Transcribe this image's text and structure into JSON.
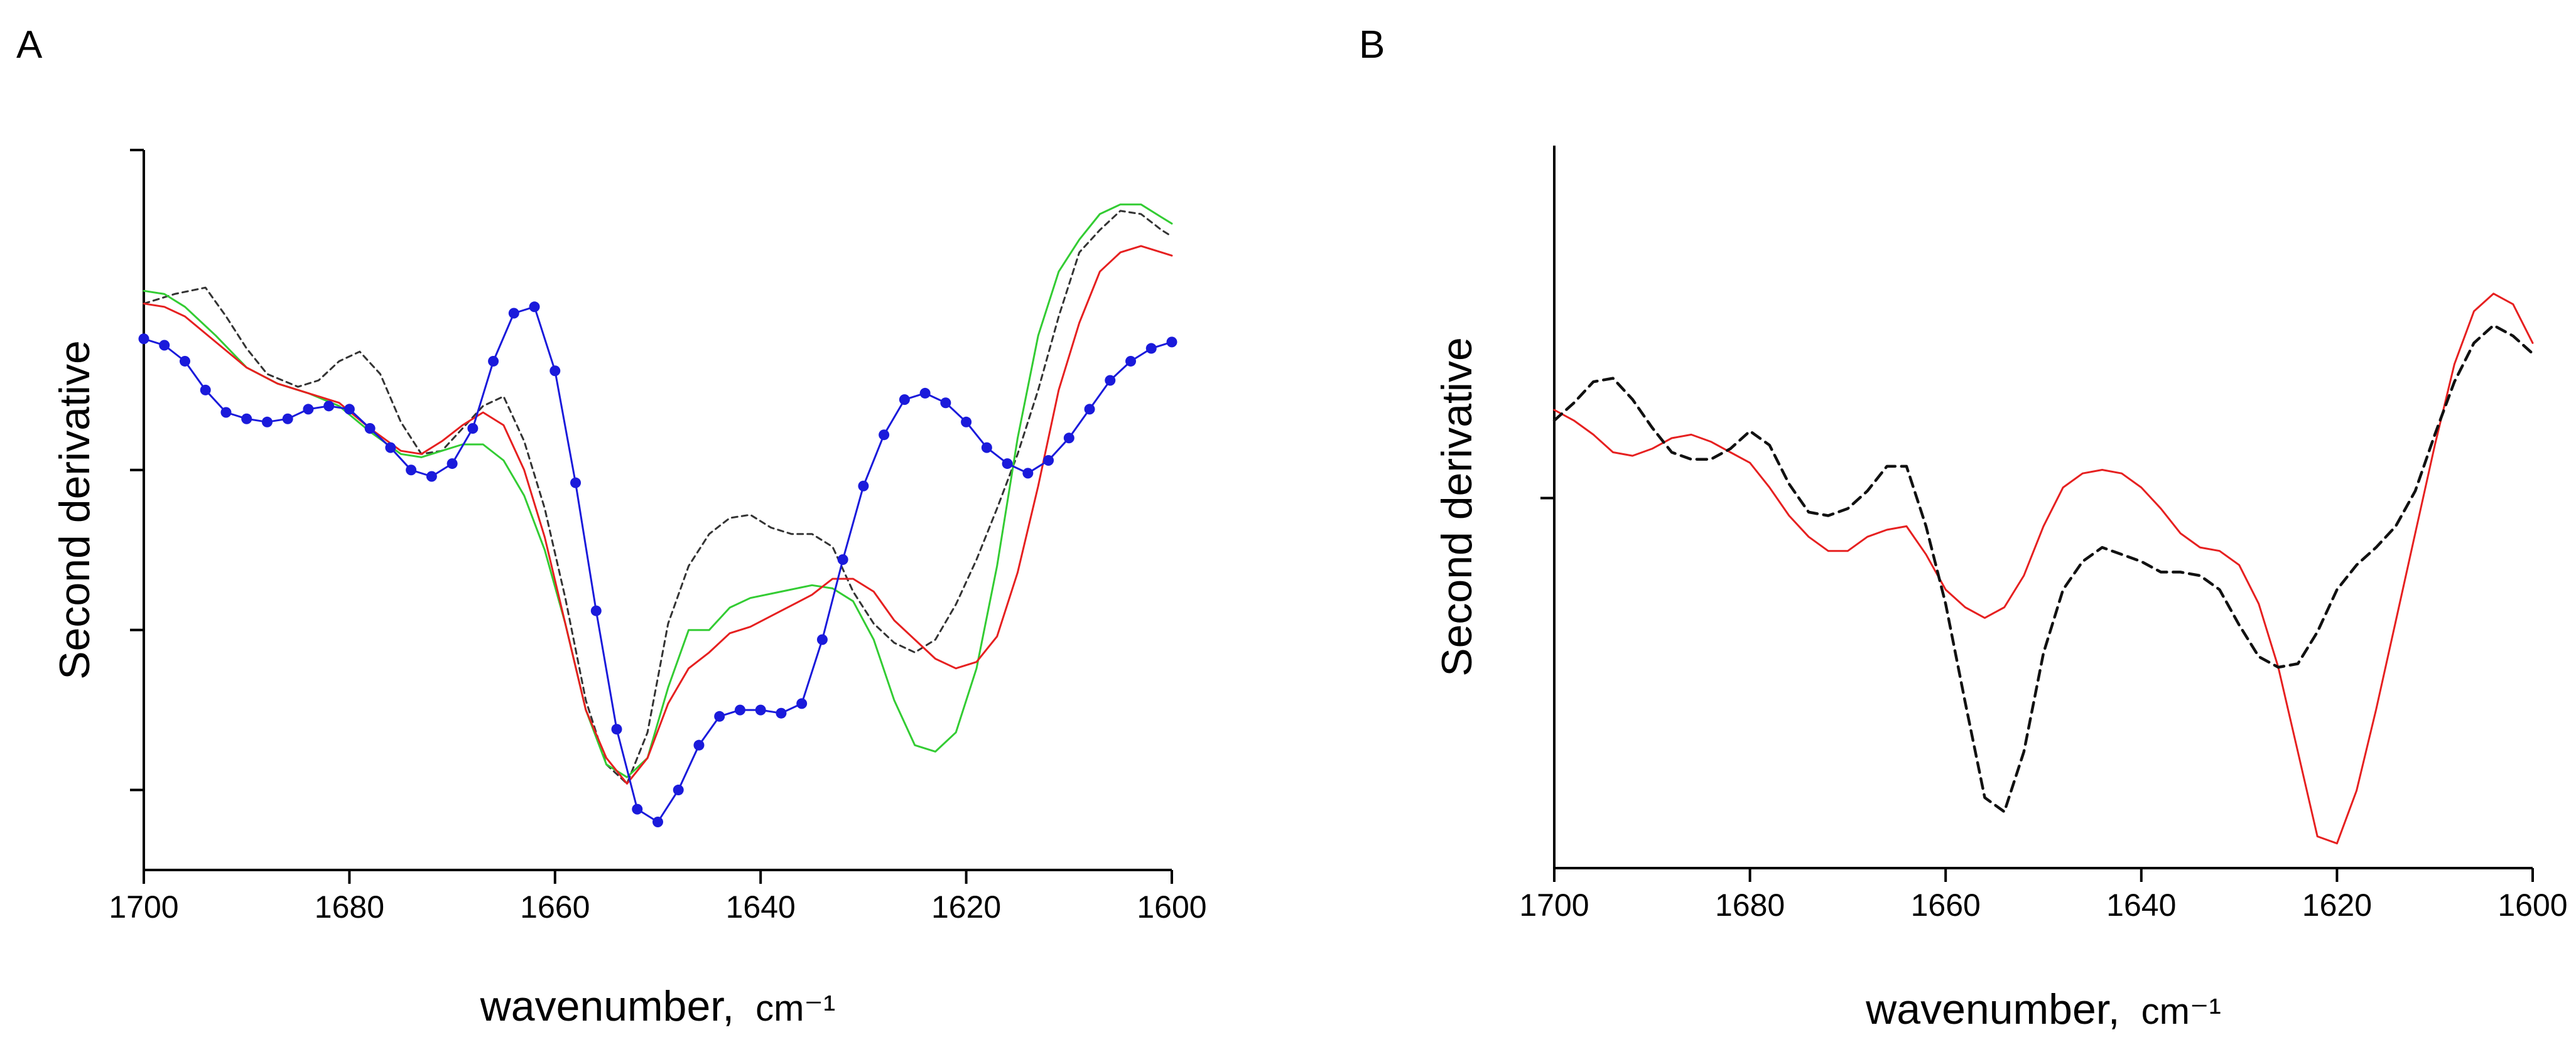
{
  "chart_data": [
    {
      "panel": "A",
      "type": "line",
      "xlabel": "wavenumber,",
      "xunit": "cm⁻¹",
      "ylabel": "Second derivative",
      "xlim": [
        1700,
        1600
      ],
      "ylim": [
        -1.25,
        1.0
      ],
      "xticks": [
        1700,
        1680,
        1660,
        1640,
        1620,
        1600
      ],
      "yticks": [
        1.0,
        0.0,
        -0.5,
        -1.0
      ],
      "ytick_labels": false,
      "grid": false,
      "series": [
        {
          "name": "black dashed",
          "color": "#333333",
          "style": "dashed",
          "markers": false,
          "x": [
            1700,
            1697,
            1694,
            1692,
            1690,
            1688,
            1685,
            1683,
            1681,
            1679,
            1677,
            1675,
            1673,
            1671,
            1669,
            1667,
            1665,
            1663,
            1661,
            1659,
            1657,
            1655,
            1653,
            1651,
            1649,
            1647,
            1645,
            1643,
            1641,
            1639,
            1637,
            1635,
            1633,
            1631,
            1629,
            1627,
            1625,
            1623,
            1621,
            1619,
            1617,
            1615,
            1613,
            1611,
            1609,
            1607,
            1605,
            1603,
            1601,
            1600
          ],
          "y": [
            0.52,
            0.55,
            0.57,
            0.48,
            0.38,
            0.3,
            0.26,
            0.28,
            0.34,
            0.37,
            0.3,
            0.15,
            0.05,
            0.06,
            0.13,
            0.2,
            0.23,
            0.09,
            -0.12,
            -0.4,
            -0.72,
            -0.92,
            -0.98,
            -0.82,
            -0.48,
            -0.3,
            -0.2,
            -0.15,
            -0.14,
            -0.18,
            -0.2,
            -0.2,
            -0.24,
            -0.38,
            -0.48,
            -0.54,
            -0.57,
            -0.53,
            -0.42,
            -0.28,
            -0.12,
            0.05,
            0.25,
            0.48,
            0.68,
            0.75,
            0.81,
            0.8,
            0.75,
            0.73
          ]
        },
        {
          "name": "green",
          "color": "#33cc33",
          "style": "solid",
          "markers": false,
          "x": [
            1700,
            1698,
            1696,
            1693,
            1690,
            1687,
            1684,
            1681,
            1678,
            1675,
            1673,
            1671,
            1669,
            1667,
            1665,
            1663,
            1661,
            1659,
            1657,
            1655,
            1653,
            1651,
            1649,
            1647,
            1645,
            1643,
            1641,
            1638,
            1635,
            1633,
            1631,
            1629,
            1627,
            1625,
            1623,
            1621,
            1619,
            1617,
            1615,
            1613,
            1611,
            1609,
            1607,
            1605,
            1603,
            1601,
            1600
          ],
          "y": [
            0.56,
            0.55,
            0.51,
            0.42,
            0.32,
            0.27,
            0.24,
            0.2,
            0.12,
            0.05,
            0.04,
            0.06,
            0.08,
            0.08,
            0.03,
            -0.08,
            -0.25,
            -0.48,
            -0.75,
            -0.92,
            -0.96,
            -0.9,
            -0.68,
            -0.5,
            -0.5,
            -0.43,
            -0.4,
            -0.38,
            -0.36,
            -0.37,
            -0.41,
            -0.53,
            -0.72,
            -0.86,
            -0.88,
            -0.82,
            -0.62,
            -0.3,
            0.1,
            0.42,
            0.62,
            0.72,
            0.8,
            0.83,
            0.83,
            0.79,
            0.77
          ]
        },
        {
          "name": "red",
          "color": "#e62020",
          "style": "solid",
          "markers": false,
          "x": [
            1700,
            1698,
            1696,
            1693,
            1690,
            1687,
            1684,
            1681,
            1678,
            1675,
            1673,
            1671,
            1669,
            1667,
            1665,
            1663,
            1661,
            1659,
            1657,
            1655,
            1653,
            1651,
            1649,
            1647,
            1645,
            1643,
            1641,
            1638,
            1635,
            1633,
            1631,
            1629,
            1627,
            1625,
            1623,
            1621,
            1619,
            1617,
            1615,
            1613,
            1611,
            1609,
            1607,
            1605,
            1603,
            1601,
            1600
          ],
          "y": [
            0.52,
            0.51,
            0.48,
            0.4,
            0.32,
            0.27,
            0.24,
            0.21,
            0.13,
            0.06,
            0.05,
            0.09,
            0.14,
            0.18,
            0.14,
            0.0,
            -0.21,
            -0.48,
            -0.75,
            -0.9,
            -0.98,
            -0.9,
            -0.73,
            -0.62,
            -0.57,
            -0.51,
            -0.49,
            -0.44,
            -0.39,
            -0.34,
            -0.34,
            -0.38,
            -0.47,
            -0.53,
            -0.59,
            -0.62,
            -0.6,
            -0.52,
            -0.32,
            -0.05,
            0.25,
            0.46,
            0.62,
            0.68,
            0.7,
            0.68,
            0.67
          ]
        },
        {
          "name": "blue with markers",
          "color": "#1a1adb",
          "style": "solid",
          "markers": true,
          "x": [
            1700,
            1698,
            1696,
            1694,
            1692,
            1690,
            1688,
            1686,
            1684,
            1682,
            1680,
            1678,
            1676,
            1674,
            1672,
            1670,
            1668,
            1666,
            1664,
            1662,
            1660,
            1658,
            1656,
            1654,
            1652,
            1650,
            1648,
            1646,
            1644,
            1642,
            1640,
            1638,
            1636,
            1634,
            1632,
            1630,
            1628,
            1626,
            1624,
            1622,
            1620,
            1618,
            1616,
            1614,
            1612,
            1610,
            1608,
            1606,
            1604,
            1602,
            1600
          ],
          "y": [
            0.41,
            0.39,
            0.34,
            0.25,
            0.18,
            0.16,
            0.15,
            0.16,
            0.19,
            0.2,
            0.19,
            0.13,
            0.07,
            0.0,
            -0.02,
            0.02,
            0.13,
            0.34,
            0.49,
            0.51,
            0.31,
            -0.04,
            -0.44,
            -0.81,
            -1.06,
            -1.1,
            -1.0,
            -0.86,
            -0.77,
            -0.75,
            -0.75,
            -0.76,
            -0.73,
            -0.53,
            -0.28,
            -0.05,
            0.11,
            0.22,
            0.24,
            0.21,
            0.15,
            0.07,
            0.02,
            -0.01,
            0.03,
            0.1,
            0.19,
            0.28,
            0.34,
            0.38,
            0.4
          ]
        }
      ]
    },
    {
      "panel": "B",
      "type": "line",
      "xlabel": "wavenumber,",
      "xunit": "cm⁻¹",
      "ylabel": "Second derivative",
      "xlim": [
        1700,
        1600
      ],
      "ylim": [
        -1.05,
        1.0
      ],
      "xticks": [
        1700,
        1680,
        1660,
        1640,
        1620,
        1600
      ],
      "yticks": [
        0.0
      ],
      "ytick_labels": false,
      "grid": false,
      "series": [
        {
          "name": "red",
          "color": "#e62020",
          "style": "solid",
          "markers": false,
          "x": [
            1700,
            1698,
            1696,
            1694,
            1692,
            1690,
            1688,
            1686,
            1684,
            1682,
            1680,
            1678,
            1676,
            1674,
            1672,
            1670,
            1668,
            1666,
            1664,
            1662,
            1660,
            1658,
            1656,
            1654,
            1652,
            1650,
            1648,
            1646,
            1644,
            1642,
            1640,
            1638,
            1636,
            1634,
            1632,
            1630,
            1628,
            1626,
            1624,
            1622,
            1620,
            1618,
            1616,
            1614,
            1612,
            1610,
            1608,
            1606,
            1604,
            1602,
            1600
          ],
          "y": [
            0.25,
            0.22,
            0.18,
            0.13,
            0.12,
            0.14,
            0.17,
            0.18,
            0.16,
            0.13,
            0.1,
            0.03,
            -0.05,
            -0.11,
            -0.15,
            -0.15,
            -0.11,
            -0.09,
            -0.08,
            -0.16,
            -0.26,
            -0.31,
            -0.34,
            -0.31,
            -0.22,
            -0.08,
            0.03,
            0.07,
            0.08,
            0.07,
            0.03,
            -0.03,
            -0.1,
            -0.14,
            -0.15,
            -0.19,
            -0.3,
            -0.48,
            -0.72,
            -0.96,
            -0.98,
            -0.83,
            -0.6,
            -0.35,
            -0.1,
            0.15,
            0.38,
            0.53,
            0.58,
            0.55,
            0.44
          ]
        },
        {
          "name": "black dashed",
          "color": "#111111",
          "style": "dashed",
          "markers": false,
          "x": [
            1700,
            1698,
            1696,
            1694,
            1692,
            1690,
            1688,
            1686,
            1684,
            1682,
            1680,
            1678,
            1676,
            1674,
            1672,
            1670,
            1668,
            1666,
            1664,
            1662,
            1660,
            1658,
            1656,
            1654,
            1652,
            1650,
            1648,
            1646,
            1644,
            1642,
            1640,
            1638,
            1636,
            1634,
            1632,
            1630,
            1628,
            1626,
            1624,
            1622,
            1620,
            1618,
            1616,
            1614,
            1612,
            1610,
            1608,
            1606,
            1604,
            1602,
            1600
          ],
          "y": [
            0.22,
            0.27,
            0.33,
            0.34,
            0.28,
            0.2,
            0.13,
            0.11,
            0.11,
            0.14,
            0.19,
            0.15,
            0.04,
            -0.04,
            -0.05,
            -0.03,
            0.02,
            0.09,
            0.09,
            -0.08,
            -0.3,
            -0.58,
            -0.85,
            -0.89,
            -0.72,
            -0.44,
            -0.26,
            -0.18,
            -0.14,
            -0.16,
            -0.18,
            -0.21,
            -0.21,
            -0.22,
            -0.26,
            -0.36,
            -0.45,
            -0.48,
            -0.47,
            -0.38,
            -0.26,
            -0.19,
            -0.14,
            -0.08,
            0.02,
            0.18,
            0.33,
            0.44,
            0.49,
            0.46,
            0.41
          ]
        }
      ]
    }
  ]
}
